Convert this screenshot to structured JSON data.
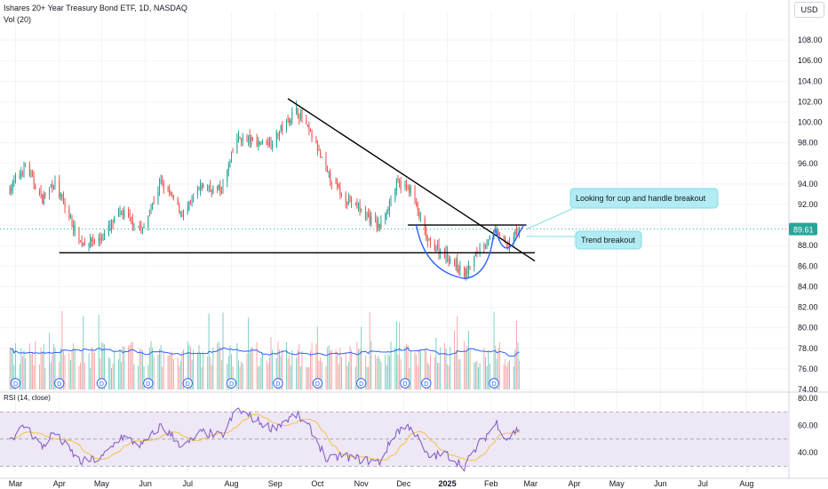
{
  "header": {
    "title": "Ishares 20+ Year Treasury Bond ETF, 1D, NASDAQ",
    "volume_label": "Vol (20)"
  },
  "currency": "USD",
  "rsi_label": "RSI (14, close)",
  "last_price_label": "89.61",
  "colors": {
    "up": "#26a69a",
    "down": "#ef5350",
    "up_vol": "#7fcfc6",
    "down_vol": "#f7a9a7",
    "vol_ma": "#2962ff",
    "rsi_line": "#7e57c2",
    "rsi_ma": "#f5c242",
    "rsi_band": "#ede7f6",
    "trendline": "#000000",
    "cup": "#2962ff",
    "callout_bg": "#b2ebf2",
    "price_tag": "#26a69a",
    "dividend": "#2962ff"
  },
  "annotations": [
    {
      "id": "cup-handle",
      "text": "Looking for cup and handle breakout"
    },
    {
      "id": "trend-breakout",
      "text": "Trend breakout"
    }
  ],
  "dividend_marker": "D",
  "chart_data": {
    "type": "candlestick",
    "title": "Ishares 20+ Year Treasury Bond ETF, 1D, NASDAQ",
    "y_axis": {
      "ticks": [
        74,
        76,
        78,
        80,
        82,
        84,
        86,
        88,
        90,
        92,
        94,
        96,
        98,
        100,
        102,
        104,
        106,
        108
      ],
      "tick_labels": [
        "74.00",
        "76.00",
        "78.00",
        "80.00",
        "82.00",
        "84.00",
        "86.00",
        "88.00",
        "90.00",
        "92.00",
        "94.00",
        "96.00",
        "98.00",
        "100.00",
        "102.00",
        "104.00",
        "106.00",
        "108.00"
      ],
      "ylim": [
        74,
        110
      ]
    },
    "x_axis": {
      "labels": [
        "Mar",
        "Apr",
        "May",
        "Jun",
        "Jul",
        "Aug",
        "Sep",
        "Oct",
        "Nov",
        "Dec",
        "2025",
        "Feb",
        "Mar",
        "Apr",
        "May",
        "Jun",
        "Jul",
        "Aug"
      ],
      "bold": [
        "2025"
      ],
      "dates": [
        "2024-03-01",
        "2024-04-01",
        "2024-05-01",
        "2024-06-01",
        "2024-07-01",
        "2024-08-01",
        "2024-09-01",
        "2024-10-01",
        "2024-11-01",
        "2024-12-01",
        "2025-01-01",
        "2025-02-01",
        "2025-03-01",
        "2025-04-01",
        "2025-05-01",
        "2025-06-01",
        "2025-07-01",
        "2025-08-01"
      ]
    },
    "price_anchors": [
      {
        "date": "2024-02-26",
        "close": 93.5
      },
      {
        "date": "2024-03-08",
        "close": 95.8
      },
      {
        "date": "2024-03-20",
        "close": 92.5
      },
      {
        "date": "2024-03-28",
        "close": 94.2
      },
      {
        "date": "2024-04-16",
        "close": 88.3
      },
      {
        "date": "2024-04-30",
        "close": 88.6
      },
      {
        "date": "2024-05-15",
        "close": 91.3
      },
      {
        "date": "2024-05-30",
        "close": 89.5
      },
      {
        "date": "2024-06-12",
        "close": 94.2
      },
      {
        "date": "2024-06-28",
        "close": 91.0
      },
      {
        "date": "2024-07-11",
        "close": 93.8
      },
      {
        "date": "2024-07-25",
        "close": 93.4
      },
      {
        "date": "2024-08-05",
        "close": 98.5
      },
      {
        "date": "2024-08-20",
        "close": 98.0
      },
      {
        "date": "2024-08-30",
        "close": 98.2
      },
      {
        "date": "2024-09-16",
        "close": 101.3
      },
      {
        "date": "2024-09-27",
        "close": 98.6
      },
      {
        "date": "2024-10-08",
        "close": 95.0
      },
      {
        "date": "2024-10-18",
        "close": 93.0
      },
      {
        "date": "2024-10-31",
        "close": 91.5
      },
      {
        "date": "2024-11-14",
        "close": 89.8
      },
      {
        "date": "2024-11-26",
        "close": 94.0
      },
      {
        "date": "2024-12-06",
        "close": 93.5
      },
      {
        "date": "2024-12-18",
        "close": 88.3
      },
      {
        "date": "2024-12-31",
        "close": 87.2
      },
      {
        "date": "2025-01-13",
        "close": 85.1
      },
      {
        "date": "2025-01-24",
        "close": 87.8
      },
      {
        "date": "2025-02-05",
        "close": 89.4
      },
      {
        "date": "2025-02-12",
        "close": 88.0
      },
      {
        "date": "2025-02-21",
        "close": 89.6
      }
    ],
    "last_price": 89.61,
    "volume_ma_period": 20,
    "rsi": {
      "period": 14,
      "source": "close",
      "ticks": [
        40,
        60,
        80
      ],
      "tick_labels": [
        "40.00",
        "60.00",
        "80.00"
      ],
      "band": [
        30,
        70
      ],
      "ylim": [
        25,
        80
      ],
      "anchors": [
        {
          "date": "2024-02-26",
          "value": 50
        },
        {
          "date": "2024-03-08",
          "value": 60
        },
        {
          "date": "2024-03-20",
          "value": 44
        },
        {
          "date": "2024-03-28",
          "value": 55
        },
        {
          "date": "2024-04-16",
          "value": 33
        },
        {
          "date": "2024-05-01",
          "value": 36
        },
        {
          "date": "2024-05-15",
          "value": 52
        },
        {
          "date": "2024-05-30",
          "value": 45
        },
        {
          "date": "2024-06-12",
          "value": 60
        },
        {
          "date": "2024-06-28",
          "value": 44
        },
        {
          "date": "2024-07-11",
          "value": 55
        },
        {
          "date": "2024-07-25",
          "value": 52
        },
        {
          "date": "2024-08-05",
          "value": 72
        },
        {
          "date": "2024-08-20",
          "value": 63
        },
        {
          "date": "2024-08-30",
          "value": 58
        },
        {
          "date": "2024-09-16",
          "value": 68
        },
        {
          "date": "2024-09-27",
          "value": 56
        },
        {
          "date": "2024-10-08",
          "value": 34
        },
        {
          "date": "2024-10-18",
          "value": 38
        },
        {
          "date": "2024-10-31",
          "value": 35
        },
        {
          "date": "2024-11-14",
          "value": 33
        },
        {
          "date": "2024-11-26",
          "value": 56
        },
        {
          "date": "2024-12-06",
          "value": 60
        },
        {
          "date": "2024-12-18",
          "value": 37
        },
        {
          "date": "2024-12-31",
          "value": 39
        },
        {
          "date": "2025-01-13",
          "value": 30
        },
        {
          "date": "2025-01-24",
          "value": 47
        },
        {
          "date": "2025-02-05",
          "value": 62
        },
        {
          "date": "2025-02-12",
          "value": 50
        },
        {
          "date": "2025-02-21",
          "value": 58
        }
      ]
    },
    "dividends": [
      "2024-03-01",
      "2024-04-01",
      "2024-05-01",
      "2024-06-03",
      "2024-07-01",
      "2024-08-01",
      "2024-09-03",
      "2024-10-01",
      "2024-11-01",
      "2024-12-02",
      "2024-12-17",
      "2025-02-03"
    ],
    "trendlines": [
      {
        "name": "descending-resistance",
        "from": {
          "date": "2024-09-10",
          "price": 102.3
        },
        "to": {
          "date": "2025-03-04",
          "price": 86.5
        }
      },
      {
        "name": "horizontal-support",
        "from": {
          "date": "2024-04-01",
          "price": 87.3
        },
        "to": {
          "date": "2025-03-04",
          "price": 87.3
        }
      },
      {
        "name": "cup-rim",
        "from": {
          "date": "2024-12-04",
          "price": 90.0
        },
        "to": {
          "date": "2025-02-26",
          "price": 90.0
        }
      }
    ]
  }
}
